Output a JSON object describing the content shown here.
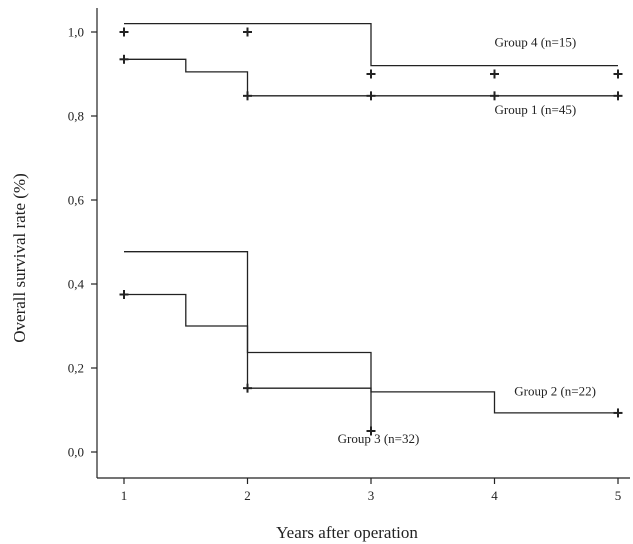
{
  "chart_data": {
    "type": "line",
    "subtype": "kaplan-meier-step",
    "xlabel": "Years after operation",
    "ylabel": "Overall survival rate  (%)",
    "xlim": [
      0.8,
      5.1
    ],
    "ylim": [
      -0.04,
      1.07
    ],
    "xticks": [
      1,
      2,
      3,
      4,
      5
    ],
    "xtick_labels": [
      "1",
      "2",
      "3",
      "4",
      "5"
    ],
    "yticks": [
      0.0,
      0.2,
      0.4,
      0.6,
      0.8,
      1.0
    ],
    "ytick_labels": [
      "0,0",
      "0,2",
      "0,4",
      "0,6",
      "0,8",
      "1,0"
    ],
    "grid": false,
    "series": [
      {
        "name": "Group 4 (n=15)",
        "steps": [
          [
            1,
            1.02
          ],
          [
            3,
            1.02
          ],
          [
            3,
            0.92
          ],
          [
            5,
            0.92
          ]
        ],
        "censor_marks": [
          [
            1,
            1.0
          ],
          [
            2,
            1.0
          ],
          [
            3,
            0.9
          ],
          [
            4,
            0.9
          ],
          [
            5,
            0.9
          ]
        ],
        "label_pos": [
          4.0,
          0.965
        ]
      },
      {
        "name": "Group 1 (n=45)",
        "steps": [
          [
            1,
            0.935
          ],
          [
            1.5,
            0.935
          ],
          [
            1.5,
            0.905
          ],
          [
            2,
            0.905
          ],
          [
            2,
            0.848
          ],
          [
            5,
            0.848
          ]
        ],
        "censor_marks": [
          [
            1,
            0.935
          ],
          [
            2,
            0.848
          ],
          [
            3,
            0.848
          ],
          [
            4,
            0.848
          ],
          [
            5,
            0.848
          ]
        ],
        "label_pos": [
          4.0,
          0.805
        ]
      },
      {
        "name": "Group 2 (n=22)",
        "steps": [
          [
            1,
            0.477
          ],
          [
            2,
            0.477
          ],
          [
            2,
            0.237
          ],
          [
            3,
            0.237
          ],
          [
            3,
            0.143
          ],
          [
            4,
            0.143
          ],
          [
            4,
            0.093
          ],
          [
            5,
            0.093
          ]
        ],
        "censor_marks": [
          [
            5,
            0.093
          ]
        ],
        "label_pos": [
          4.16,
          0.135
        ]
      },
      {
        "name": "Group 3 (n=32)",
        "steps": [
          [
            1,
            0.375
          ],
          [
            1.5,
            0.375
          ],
          [
            1.5,
            0.3
          ],
          [
            2,
            0.3
          ],
          [
            2,
            0.152
          ],
          [
            3,
            0.152
          ],
          [
            3,
            0.05
          ]
        ],
        "censor_marks": [
          [
            1,
            0.375
          ],
          [
            2,
            0.152
          ],
          [
            3,
            0.05
          ]
        ],
        "label_pos": [
          2.73,
          0.022
        ]
      }
    ]
  }
}
